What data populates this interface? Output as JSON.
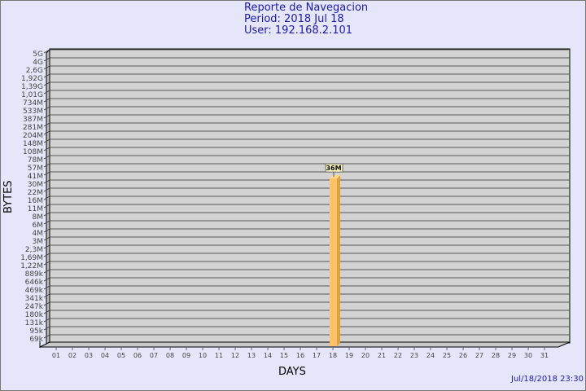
{
  "chart_data": {
    "type": "bar",
    "title": "Reporte de Navegacion",
    "subtitle": [
      "Period: 2018 Jul 18",
      "User: 192.168.2.101"
    ],
    "xlabel": "DAYS",
    "ylabel": "BYTES",
    "y_scale": "log",
    "y_ticks": [
      "5G",
      "4G",
      "2,6G",
      "1,92G",
      "1,39G",
      "1,01G",
      "734M",
      "533M",
      "387M",
      "281M",
      "204M",
      "148M",
      "108M",
      "78M",
      "57M",
      "41M",
      "30M",
      "22M",
      "16M",
      "11M",
      "8M",
      "6M",
      "4M",
      "3M",
      "2,3M",
      "1,69M",
      "1,22M",
      "889k",
      "646k",
      "469k",
      "341k",
      "247k",
      "180k",
      "131k",
      "95k",
      "69k"
    ],
    "categories": [
      "01",
      "02",
      "03",
      "04",
      "05",
      "06",
      "07",
      "08",
      "09",
      "10",
      "11",
      "12",
      "13",
      "14",
      "15",
      "16",
      "17",
      "18",
      "19",
      "20",
      "21",
      "22",
      "23",
      "24",
      "25",
      "26",
      "27",
      "28",
      "29",
      "30",
      "31"
    ],
    "bars": [
      {
        "day": "18",
        "value_bytes": 36000000,
        "label": "36M"
      }
    ],
    "grid": true,
    "colors": {
      "bar": "#ffc266",
      "bar_side": "#e0a040",
      "wall": "#d3d3d3",
      "title": "#1a1aa6",
      "background": "#e6e6fa"
    }
  },
  "footer": {
    "timestamp": "Jul/18/2018 23:30"
  }
}
